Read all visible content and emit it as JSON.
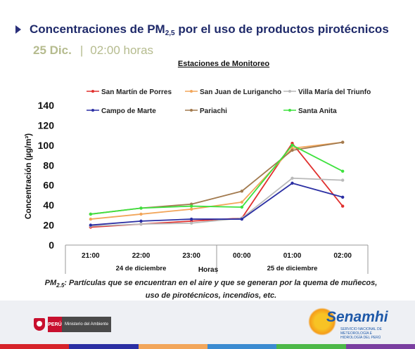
{
  "header": {
    "title_main": "Concentraciones de PM",
    "title_sub": "2,5",
    "title_rest": " por el uso de productos pirotécnicos",
    "date": "25 Dic.",
    "separator": "|",
    "time": "02:00 horas"
  },
  "chart_data": {
    "type": "line",
    "title": "Estaciones de Monitoreo",
    "ylabel": "Concentración (µg/m³)",
    "xlabel": "Horas",
    "ylim": [
      0,
      140
    ],
    "yticks": [
      "0",
      "20",
      "40",
      "60",
      "80",
      "100",
      "120",
      "140"
    ],
    "categories": [
      "21:00",
      "22:00",
      "23:00",
      "00:00",
      "01:00",
      "02:00"
    ],
    "date_groups": [
      {
        "label": "24 de diciembre",
        "span": [
          0,
          2
        ]
      },
      {
        "label": "25 de diciembre",
        "span": [
          3,
          5
        ]
      }
    ],
    "legend": "top",
    "grid": false,
    "series": [
      {
        "name": "San Martín de Porres",
        "color": "#e0302e",
        "values": [
          18,
          21,
          24,
          27,
          102,
          39
        ]
      },
      {
        "name": "San Juan de Lurigancho",
        "color": "#f2a65a",
        "values": [
          26,
          31,
          36,
          43,
          97,
          103
        ]
      },
      {
        "name": "Villa María del Triunfo",
        "color": "#b9b9b9",
        "values": [
          19,
          21,
          22,
          27,
          67,
          65
        ]
      },
      {
        "name": "Campo de Marte",
        "color": "#2b2fa3",
        "values": [
          20,
          24,
          26,
          26,
          62,
          48
        ]
      },
      {
        "name": "Pariachi",
        "color": "#a27a4e",
        "values": [
          31,
          37,
          41,
          54,
          95,
          103
        ]
      },
      {
        "name": "Santa Anita",
        "color": "#3ee23e",
        "values": [
          31,
          37,
          39,
          38,
          100,
          74
        ]
      }
    ]
  },
  "footnote": {
    "term": "PM",
    "term_sub": "2.5",
    "text": ": Partículas que se encuentran en el aire y que se generan por la quema de muñecos, uso de pirotécnicos, incendios, etc."
  },
  "footer": {
    "minam_country": "PERÚ",
    "minam_name": "Ministerio del Ambiente",
    "senamhi_name": "Senamhi",
    "senamhi_sub": "SERVICIO NACIONAL DE METEOROLOGÍA E HIDROLOGÍA DEL PERÚ",
    "bar_colors": [
      "#d6232a",
      "#2b2fa3",
      "#f2a65a",
      "#3b8bd1",
      "#4cb848",
      "#7a3fa0"
    ]
  }
}
